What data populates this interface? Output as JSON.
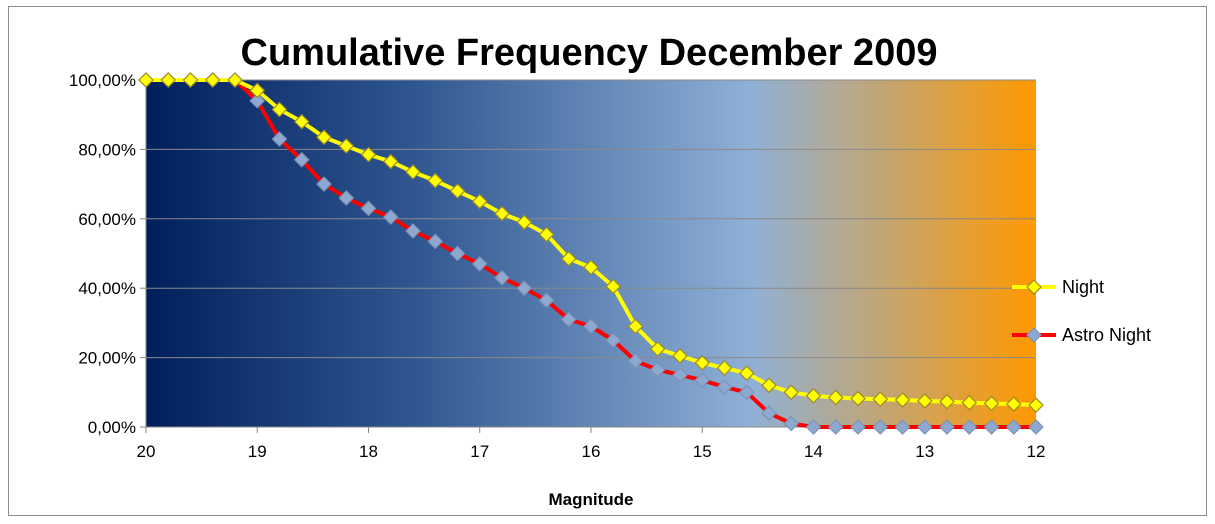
{
  "chart_data": {
    "type": "line",
    "title": "Cumulative Frequency December 2009",
    "xlabel": "Magnitude",
    "ylabel": "",
    "x_reversed": true,
    "xlim": [
      20,
      12
    ],
    "ylim": [
      0,
      1
    ],
    "x_ticks": [
      "20",
      "19",
      "18",
      "17",
      "16",
      "15",
      "14",
      "13",
      "12"
    ],
    "y_ticks": [
      "0,00%",
      "20,00%",
      "40,00%",
      "60,00%",
      "80,00%",
      "100,00%"
    ],
    "grid": "horizontal",
    "legend_position": "right",
    "background": "horizontal gradient: dark navy, light blue, orange",
    "x": [
      20.0,
      19.8,
      19.6,
      19.4,
      19.2,
      19.0,
      18.8,
      18.6,
      18.4,
      18.2,
      18.0,
      17.8,
      17.6,
      17.4,
      17.2,
      17.0,
      16.8,
      16.6,
      16.4,
      16.2,
      16.0,
      15.8,
      15.6,
      15.4,
      15.2,
      15.0,
      14.8,
      14.6,
      14.4,
      14.2,
      14.0,
      13.8,
      13.6,
      13.4,
      13.2,
      13.0,
      12.8,
      12.6,
      12.4,
      12.2,
      12.0
    ],
    "series": [
      {
        "name": "Night",
        "line_color": "#ffff00",
        "marker_color": "#ffff00",
        "marker_border": "#9c8a2a",
        "values": [
          1.0,
          1.0,
          1.0,
          1.0,
          1.0,
          0.97,
          0.915,
          0.88,
          0.835,
          0.81,
          0.785,
          0.765,
          0.735,
          0.71,
          0.68,
          0.65,
          0.615,
          0.59,
          0.555,
          0.485,
          0.46,
          0.405,
          0.29,
          0.225,
          0.205,
          0.185,
          0.17,
          0.155,
          0.12,
          0.1,
          0.09,
          0.085,
          0.082,
          0.08,
          0.078,
          0.075,
          0.073,
          0.07,
          0.068,
          0.066,
          0.063
        ]
      },
      {
        "name": "Astro Night",
        "line_color": "#ff0000",
        "marker_color": "#8ea8d0",
        "marker_border": "#7c94b8",
        "values": [
          1.0,
          1.0,
          1.0,
          1.0,
          1.0,
          0.94,
          0.83,
          0.77,
          0.7,
          0.66,
          0.63,
          0.605,
          0.565,
          0.535,
          0.5,
          0.47,
          0.43,
          0.4,
          0.365,
          0.31,
          0.29,
          0.25,
          0.19,
          0.165,
          0.15,
          0.135,
          0.115,
          0.1,
          0.04,
          0.01,
          0.0,
          0.0,
          0.0,
          0.0,
          0.0,
          0.0,
          0.0,
          0.0,
          0.0,
          0.0,
          0.0
        ]
      }
    ]
  }
}
